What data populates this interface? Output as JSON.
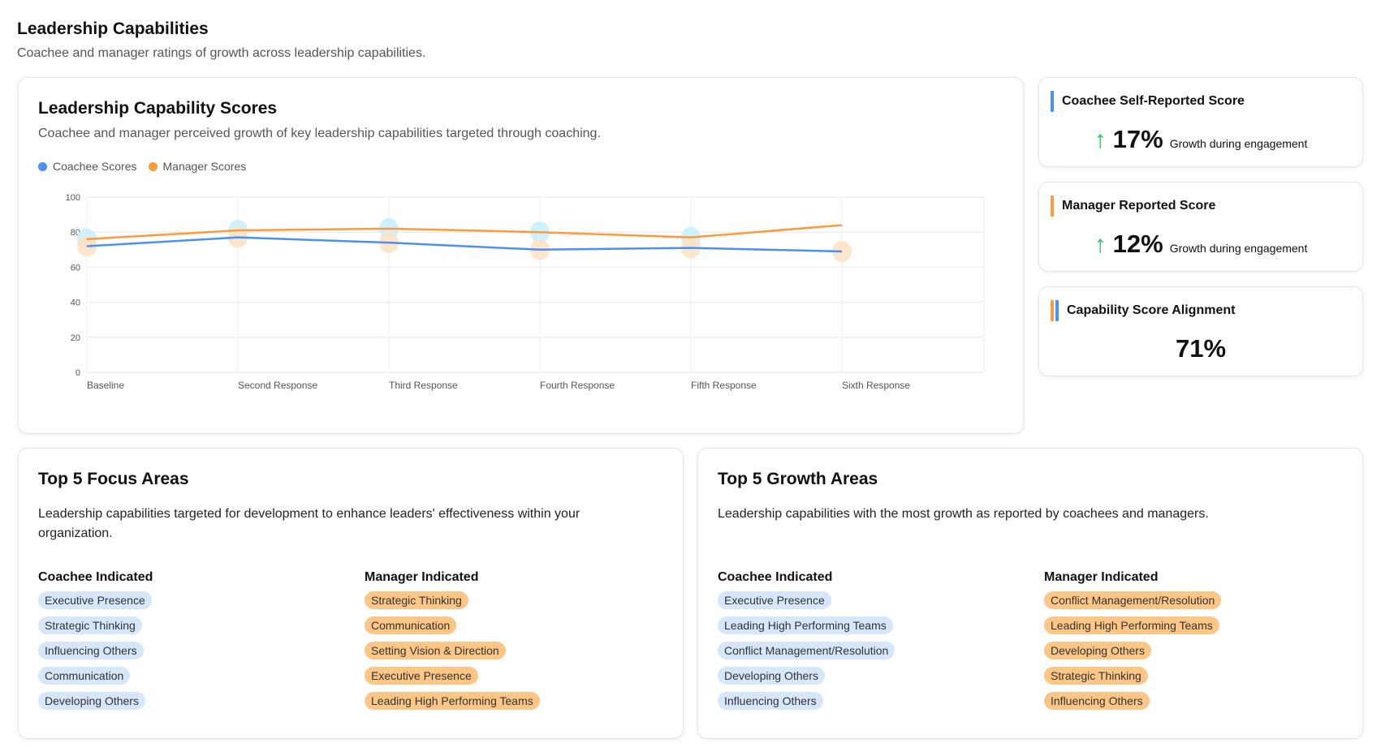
{
  "page": {
    "title": "Leadership Capabilities",
    "subtitle": "Coachee and manager ratings of growth across leadership capabilities."
  },
  "chart_card": {
    "title": "Leadership Capability Scores",
    "subtitle": "Coachee and manager perceived growth of key leadership capabilities targeted through coaching."
  },
  "chart_data": {
    "type": "line",
    "categories": [
      "Baseline",
      "Second Response",
      "Third Response",
      "Fourth Response",
      "Fifth Response",
      "Sixth Response"
    ],
    "series": [
      {
        "name": "Coachee Scores",
        "color": "#4a90f5",
        "values": [
          72,
          77,
          74,
          70,
          71,
          69
        ]
      },
      {
        "name": "Manager Scores",
        "color": "#ff9a3c",
        "values": [
          76,
          81,
          82,
          80,
          77,
          84
        ]
      }
    ],
    "ylim": [
      0,
      100
    ],
    "yticks": [
      "0",
      "20",
      "40",
      "60",
      "80",
      "100"
    ],
    "grid": true,
    "legend": "top-left"
  },
  "stats": [
    {
      "title": "Coachee Self-Reported Score",
      "value": "17%",
      "label": "Growth during engagement",
      "icon": "arrow-up-icon"
    },
    {
      "title": "Manager Reported Score",
      "value": "12%",
      "label": "Growth during engagement",
      "icon": "arrow-up-icon"
    },
    {
      "title": "Capability Score Alignment",
      "value": "71%"
    }
  ],
  "focus": {
    "title": "Top 5 Focus Areas",
    "desc": "Leadership capabilities targeted for development to enhance leaders' effectiveness within your organization.",
    "coachee_h": "Coachee Indicated",
    "manager_h": "Manager Indicated",
    "coachee": [
      "Executive Presence",
      "Strategic Thinking",
      "Influencing Others",
      "Communication",
      "Developing Others"
    ],
    "manager": [
      "Strategic Thinking",
      "Communication",
      "Setting Vision & Direction",
      "Executive Presence",
      "Leading High Performing Teams"
    ]
  },
  "growth": {
    "title": "Top 5 Growth Areas",
    "desc": "Leadership capabilities with the most growth as reported by coachees and managers.",
    "coachee_h": "Coachee Indicated",
    "manager_h": "Manager Indicated",
    "coachee": [
      "Executive Presence",
      "Leading High Performing Teams",
      "Conflict Management/Resolution",
      "Developing Others",
      "Influencing Others"
    ],
    "manager": [
      "Conflict Management/Resolution",
      "Leading High Performing Teams",
      "Developing Others",
      "Strategic Thinking",
      "Influencing Others"
    ]
  }
}
